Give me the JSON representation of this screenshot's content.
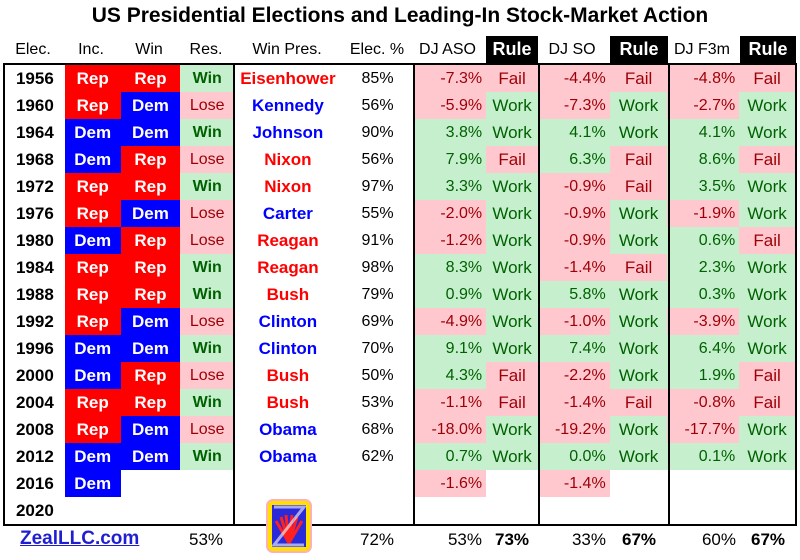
{
  "chart_data": {
    "type": "table",
    "title": "US Presidential Elections and Leading-In Stock-Market Action",
    "headers": [
      "Elec.",
      "Inc.",
      "Win",
      "Res.",
      "Win Pres.",
      "Elec. %",
      "DJ ASO",
      "Rule",
      "DJ SO",
      "Rule",
      "DJ F3m",
      "Rule"
    ],
    "rows": [
      [
        "1956",
        "Rep",
        "Rep",
        "Win",
        "Eisenhower",
        "85%",
        "-7.3%",
        "Fail",
        "-4.4%",
        "Fail",
        "-4.8%",
        "Fail"
      ],
      [
        "1960",
        "Rep",
        "Dem",
        "Lose",
        "Kennedy",
        "56%",
        "-5.9%",
        "Work",
        "-7.3%",
        "Work",
        "-2.7%",
        "Work"
      ],
      [
        "1964",
        "Dem",
        "Dem",
        "Win",
        "Johnson",
        "90%",
        "3.8%",
        "Work",
        "4.1%",
        "Work",
        "4.1%",
        "Work"
      ],
      [
        "1968",
        "Dem",
        "Rep",
        "Lose",
        "Nixon",
        "56%",
        "7.9%",
        "Fail",
        "6.3%",
        "Fail",
        "8.6%",
        "Fail"
      ],
      [
        "1972",
        "Rep",
        "Rep",
        "Win",
        "Nixon",
        "97%",
        "3.3%",
        "Work",
        "-0.9%",
        "Fail",
        "3.5%",
        "Work"
      ],
      [
        "1976",
        "Rep",
        "Dem",
        "Lose",
        "Carter",
        "55%",
        "-2.0%",
        "Work",
        "-0.9%",
        "Work",
        "-1.9%",
        "Work"
      ],
      [
        "1980",
        "Dem",
        "Rep",
        "Lose",
        "Reagan",
        "91%",
        "-1.2%",
        "Work",
        "-0.9%",
        "Work",
        "0.6%",
        "Fail"
      ],
      [
        "1984",
        "Rep",
        "Rep",
        "Win",
        "Reagan",
        "98%",
        "8.3%",
        "Work",
        "-1.4%",
        "Fail",
        "2.3%",
        "Work"
      ],
      [
        "1988",
        "Rep",
        "Rep",
        "Win",
        "Bush",
        "79%",
        "0.9%",
        "Work",
        "5.8%",
        "Work",
        "0.3%",
        "Work"
      ],
      [
        "1992",
        "Rep",
        "Dem",
        "Lose",
        "Clinton",
        "69%",
        "-4.9%",
        "Work",
        "-1.0%",
        "Work",
        "-3.9%",
        "Work"
      ],
      [
        "1996",
        "Dem",
        "Dem",
        "Win",
        "Clinton",
        "70%",
        "9.1%",
        "Work",
        "7.4%",
        "Work",
        "6.4%",
        "Work"
      ],
      [
        "2000",
        "Dem",
        "Rep",
        "Lose",
        "Bush",
        "50%",
        "4.3%",
        "Fail",
        "-2.2%",
        "Work",
        "1.9%",
        "Fail"
      ],
      [
        "2004",
        "Rep",
        "Rep",
        "Win",
        "Bush",
        "53%",
        "-1.1%",
        "Fail",
        "-1.4%",
        "Fail",
        "-0.8%",
        "Fail"
      ],
      [
        "2008",
        "Rep",
        "Dem",
        "Lose",
        "Obama",
        "68%",
        "-18.0%",
        "Work",
        "-19.2%",
        "Work",
        "-17.7%",
        "Work"
      ],
      [
        "2012",
        "Dem",
        "Dem",
        "Win",
        "Obama",
        "62%",
        "0.7%",
        "Work",
        "0.0%",
        "Work",
        "0.1%",
        "Work"
      ],
      [
        "2016",
        "Dem",
        "",
        "",
        "",
        "",
        "-1.6%",
        "",
        "-1.4%",
        "",
        "",
        ""
      ],
      [
        "2020",
        "",
        "",
        "",
        "",
        "",
        "",
        "",
        "",
        "",
        "",
        ""
      ]
    ],
    "footer": [
      "",
      "",
      "",
      "53%",
      "",
      "72%",
      "53%",
      "73%",
      "33%",
      "67%",
      "60%",
      "67%"
    ]
  },
  "site": "ZealLLC.com",
  "colors": {
    "rep": "#ff0000",
    "dem": "#0000ff"
  }
}
